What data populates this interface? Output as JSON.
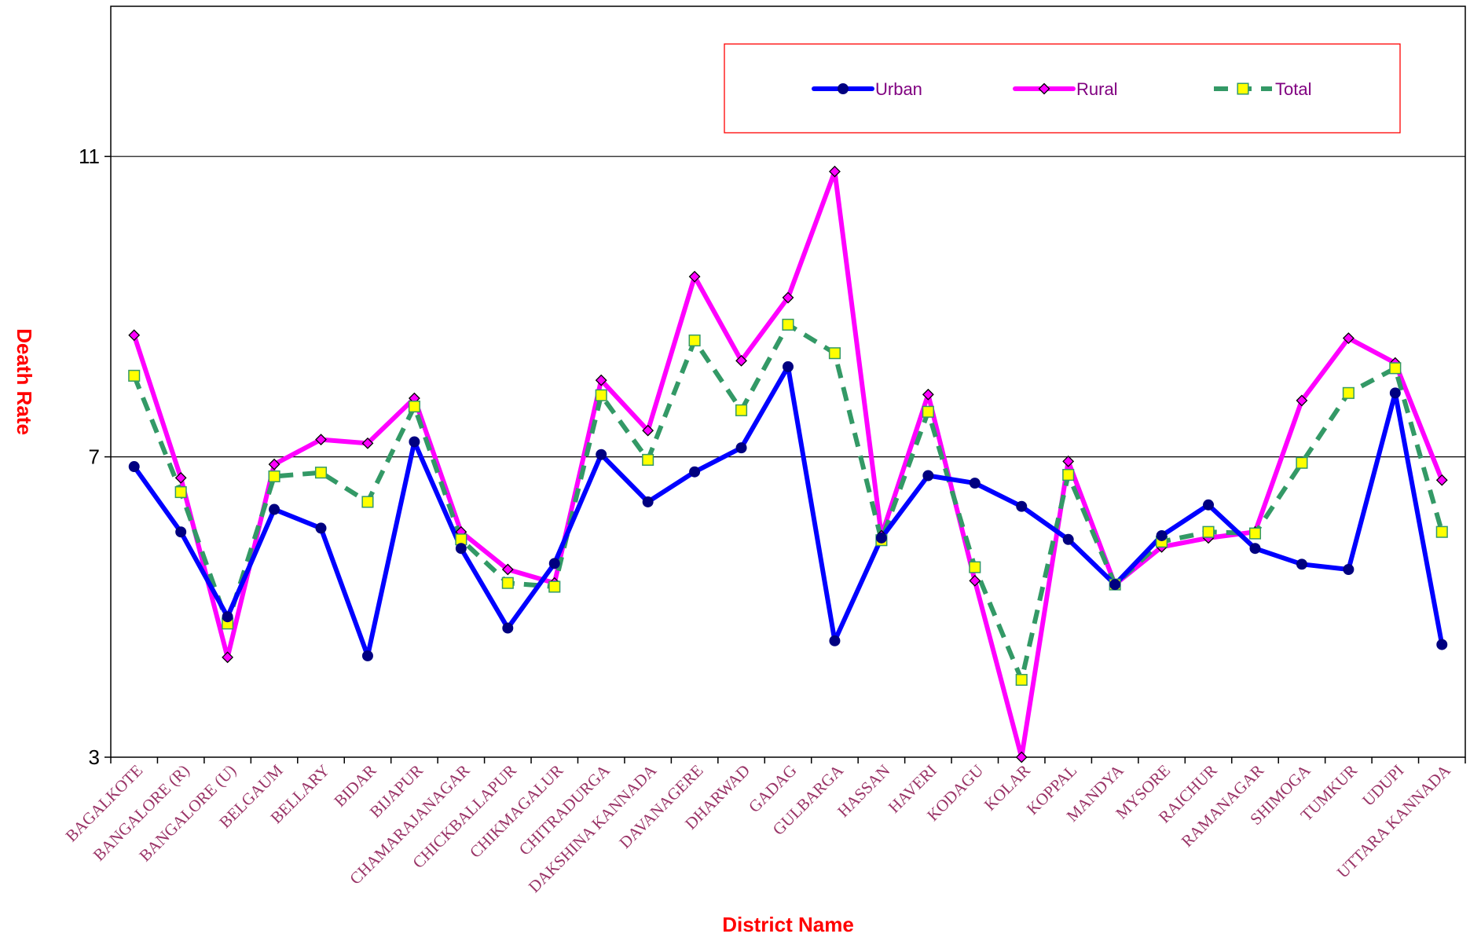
{
  "chart_data": {
    "type": "line",
    "xlabel": "District Name",
    "ylabel": "Death Rate",
    "ylim": [
      3,
      13
    ],
    "yticks": [
      3,
      7,
      11
    ],
    "grid": "horizontal major lines",
    "legend_position": "top-right",
    "categories": [
      "BAGALKOTE",
      "BANGALORE (R)",
      "BANGALORE (U)",
      "BELGAUM",
      "BELLARY",
      "BIDAR",
      "BIJAPUR",
      "CHAMARAJANAGAR",
      "CHICKBALLAPUR",
      "CHIKMAGALUR",
      "CHITRADURGA",
      "DAKSHINA KANNADA",
      "DAVANAGERE",
      "DHARWAD",
      "GADAG",
      "GULBARGA",
      "HASSAN",
      "HAVERI",
      "KODAGU",
      "KOLAR",
      "KOPPAL",
      "MANDYA",
      "MYSORE",
      "RAICHUR",
      "RAMANAGAR",
      "SHIMOGA",
      "TUMKUR",
      "UDUPI",
      "UTTARA KANNADA"
    ],
    "series": [
      {
        "name": "Urban",
        "color": "#0000ff",
        "marker": "circle",
        "line": "solid",
        "values": [
          6.87,
          6.0,
          4.87,
          6.3,
          6.05,
          4.35,
          7.2,
          5.78,
          4.72,
          5.58,
          7.03,
          6.4,
          6.8,
          7.12,
          8.2,
          4.55,
          5.92,
          6.75,
          6.65,
          6.34,
          5.9,
          5.3,
          5.95,
          6.36,
          5.78,
          5.57,
          5.5,
          7.85,
          4.5
        ]
      },
      {
        "name": "Rural",
        "color": "#ff00ff",
        "marker": "diamond",
        "line": "solid",
        "values": [
          8.62,
          6.72,
          4.33,
          6.9,
          7.23,
          7.18,
          7.78,
          6.0,
          5.5,
          5.32,
          8.02,
          7.35,
          9.4,
          8.28,
          9.12,
          10.8,
          5.95,
          7.83,
          5.35,
          3.0,
          6.94,
          5.3,
          5.8,
          5.92,
          6.0,
          7.75,
          8.58,
          8.25,
          6.69
        ]
      },
      {
        "name": "Total",
        "color": "#339966",
        "marker": "square",
        "line": "dashed",
        "marker_fill": "#ffff00",
        "values": [
          8.08,
          6.53,
          4.78,
          6.74,
          6.79,
          6.4,
          7.67,
          5.9,
          5.32,
          5.27,
          7.82,
          6.96,
          8.55,
          7.62,
          8.76,
          8.38,
          5.89,
          7.6,
          5.53,
          4.03,
          6.76,
          5.3,
          5.87,
          6.0,
          5.98,
          6.92,
          7.85,
          8.18,
          6.0
        ]
      }
    ]
  }
}
